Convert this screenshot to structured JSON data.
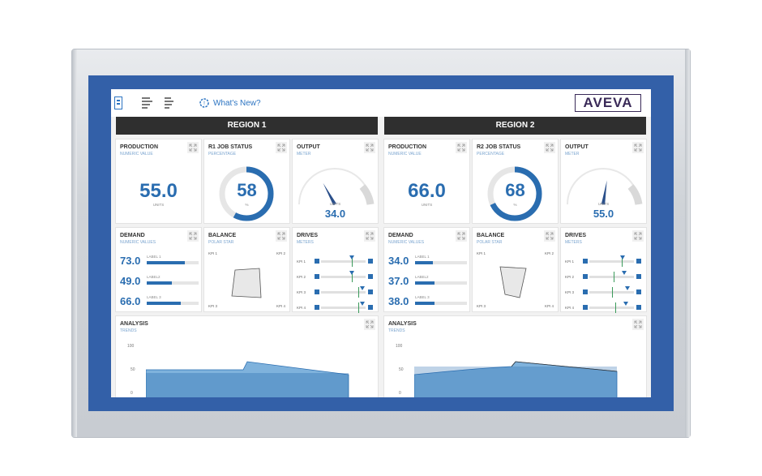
{
  "toolbar": {
    "whats_new": "What's New?",
    "logo": "AVEVA"
  },
  "regions": [
    {
      "header": "REGION 1",
      "production": {
        "title": "PRODUCTION",
        "subtitle": "NUMERIC VALUE",
        "value": "55.0",
        "units": "UNITS"
      },
      "job_status": {
        "title": "R1 JOB STATUS",
        "subtitle": "PERCENTAGE",
        "value": "58",
        "unit": "%",
        "fraction": 0.58
      },
      "output": {
        "title": "OUTPUT",
        "subtitle": "METER",
        "units": "UNITS",
        "value": "34.0",
        "fraction": 0.34
      },
      "demand": {
        "title": "DEMAND",
        "subtitle": "NUMERIC VALUES",
        "rows": [
          {
            "value": "73.0",
            "label": "LABEL 1",
            "fraction": 0.73
          },
          {
            "value": "49.0",
            "label": "LABEL2",
            "fraction": 0.49
          },
          {
            "value": "66.0",
            "label": "LABEL 3",
            "fraction": 0.66
          }
        ]
      },
      "balance": {
        "title": "BALANCE",
        "subtitle": "POLAR STAR",
        "kpis": [
          "KPI 1",
          "KPI 2",
          "KPI 3",
          "KPI 4"
        ]
      },
      "drives": {
        "title": "DRIVES",
        "subtitle": "METERS",
        "rows": [
          "KPI 1",
          "KPI 2",
          "KPI 3",
          "KPI 4"
        ]
      },
      "analysis": {
        "title": "ANALYSIS",
        "subtitle": "TRENDS",
        "y_ticks": [
          "100",
          "50",
          "0"
        ]
      }
    },
    {
      "header": "REGION 2",
      "production": {
        "title": "PRODUCTION",
        "subtitle": "NUMERIC VALUE",
        "value": "66.0",
        "units": "UNITS"
      },
      "job_status": {
        "title": "R2 JOB STATUS",
        "subtitle": "PERCENTAGE",
        "value": "68",
        "unit": "%",
        "fraction": 0.68
      },
      "output": {
        "title": "OUTPUT",
        "subtitle": "METER",
        "units": "UNITS",
        "value": "55.0",
        "fraction": 0.55
      },
      "demand": {
        "title": "DEMAND",
        "subtitle": "NUMERIC VALUES",
        "rows": [
          {
            "value": "34.0",
            "label": "LABEL 1",
            "fraction": 0.34
          },
          {
            "value": "37.0",
            "label": "LABEL2",
            "fraction": 0.37
          },
          {
            "value": "38.0",
            "label": "LABEL 3",
            "fraction": 0.38
          }
        ]
      },
      "balance": {
        "title": "BALANCE",
        "subtitle": "POLAR STAR",
        "kpis": [
          "KPI 1",
          "KPI 2",
          "KPI 3",
          "KPI 4"
        ]
      },
      "drives": {
        "title": "DRIVES",
        "subtitle": "METERS",
        "rows": [
          "KPI 1",
          "KPI 2",
          "KPI 3",
          "KPI 4"
        ]
      },
      "analysis": {
        "title": "ANALYSIS",
        "subtitle": "TRENDS",
        "y_ticks": [
          "100",
          "50",
          "0"
        ]
      }
    }
  ],
  "colors": {
    "accent": "#2a6db0",
    "frame": "#3360a8",
    "header": "#2f2f2f",
    "brand": "#3a2a58"
  }
}
